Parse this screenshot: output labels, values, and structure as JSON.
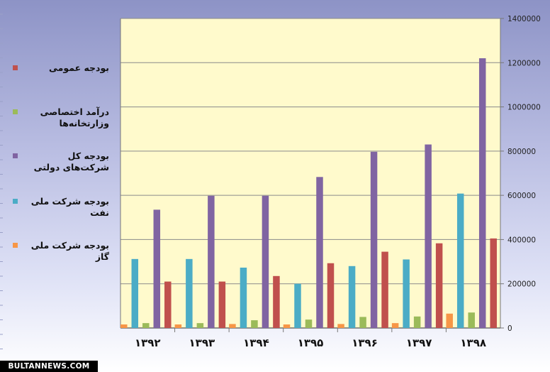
{
  "chart_data": {
    "type": "bar",
    "categories": [
      "۱۳۹۲",
      "۱۳۹۳",
      "۱۳۹۴",
      "۱۳۹۵",
      "۱۳۹۶",
      "۱۳۹۷",
      "۱۳۹۸"
    ],
    "series": [
      {
        "name": "بودجه شرکت ملی گاز",
        "color": "#f79646",
        "values": [
          16000,
          16000,
          18000,
          16000,
          18000,
          22000,
          65000
        ]
      },
      {
        "name": "بودجه شرکت ملی نفت",
        "color": "#4bacc6",
        "values": [
          312000,
          312000,
          273000,
          200000,
          280000,
          310000,
          608000
        ]
      },
      {
        "name": "درآمد اختصاصی وزارتخانه‌ها",
        "color": "#9bbb59",
        "values": [
          22000,
          22000,
          35000,
          38000,
          50000,
          52000,
          70000
        ]
      },
      {
        "name": "بودجه کل شرکت‌های دولتی",
        "color": "#8064a2",
        "values": [
          535000,
          598000,
          598000,
          683000,
          797000,
          830000,
          1220000
        ]
      },
      {
        "name": "بودجه عمومی",
        "color": "#c0504d",
        "values": [
          210000,
          210000,
          235000,
          293000,
          345000,
          383000,
          405000
        ]
      }
    ],
    "legend_order": [
      4,
      2,
      3,
      1,
      0
    ],
    "ylim": [
      0,
      1400000
    ],
    "yticks": [
      0,
      200000,
      400000,
      600000,
      800000,
      1000000,
      1200000,
      1400000
    ],
    "y_axis_side": "right",
    "grid": true,
    "legend_position": "left",
    "plot_background": "#fffacc"
  },
  "watermark": "BULTANNEWS.COM"
}
